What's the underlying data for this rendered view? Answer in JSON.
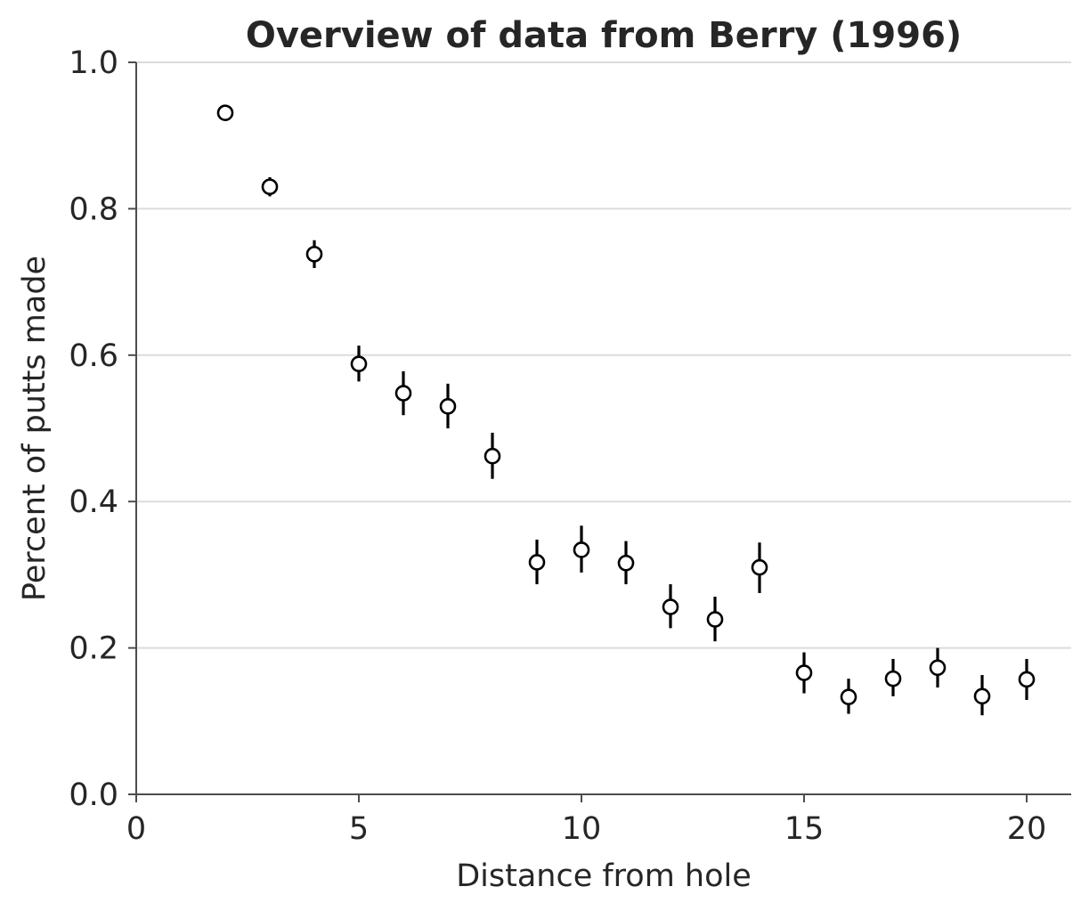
{
  "chart_data": {
    "type": "scatter",
    "title": "Overview of data from Berry (1996)",
    "xlabel": "Distance from hole",
    "ylabel": "Percent of putts made",
    "xlim": [
      0,
      21
    ],
    "ylim": [
      0,
      1.0
    ],
    "xticks": [
      0,
      5,
      10,
      15,
      20
    ],
    "xtick_labels": [
      "0",
      "5",
      "10",
      "15",
      "20"
    ],
    "yticks": [
      0.0,
      0.2,
      0.4,
      0.6,
      0.8,
      1.0
    ],
    "ytick_labels": [
      "0.0",
      "0.2",
      "0.4",
      "0.6",
      "0.8",
      "1.0"
    ],
    "grid": "horizontal",
    "marker_colors": {
      "face": "#ffffff",
      "edge": "#000000"
    },
    "series": [
      {
        "x": [
          2,
          3,
          4,
          5,
          6,
          7,
          8,
          9,
          10,
          11,
          12,
          13,
          14,
          15,
          16,
          17,
          18,
          19,
          20
        ],
        "y": [
          0.931,
          0.83,
          0.738,
          0.588,
          0.548,
          0.53,
          0.462,
          0.317,
          0.334,
          0.316,
          0.256,
          0.239,
          0.31,
          0.166,
          0.133,
          0.158,
          0.173,
          0.134,
          0.157
        ],
        "y_low": [
          0.925,
          0.817,
          0.719,
          0.564,
          0.518,
          0.5,
          0.431,
          0.287,
          0.303,
          0.287,
          0.227,
          0.209,
          0.275,
          0.138,
          0.11,
          0.134,
          0.146,
          0.108,
          0.129
        ],
        "y_high": [
          0.938,
          0.843,
          0.757,
          0.613,
          0.578,
          0.561,
          0.494,
          0.348,
          0.367,
          0.346,
          0.287,
          0.27,
          0.344,
          0.194,
          0.158,
          0.185,
          0.2,
          0.163,
          0.185
        ]
      }
    ]
  }
}
